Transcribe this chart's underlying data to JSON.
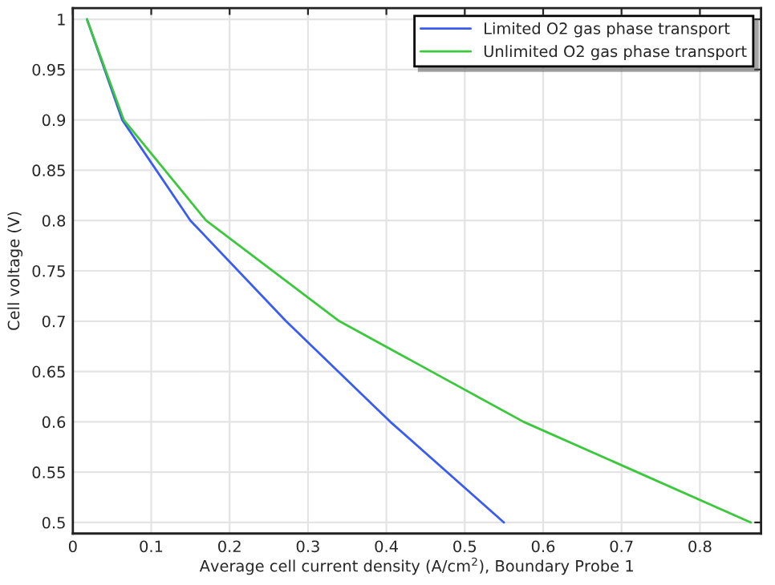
{
  "chart_data": {
    "type": "line",
    "xlabel": "Average cell current density (A/cm$^{2}$), Boundary Probe 1",
    "ylabel": "Cell voltage (V)",
    "xlim": [
      0,
      0.878
    ],
    "ylim": [
      0.489,
      1.011
    ],
    "xticks": [
      0,
      0.1,
      0.2,
      0.3,
      0.4,
      0.5,
      0.6,
      0.7,
      0.8
    ],
    "yticks": [
      0.5,
      0.55,
      0.6,
      0.65,
      0.7,
      0.75,
      0.8,
      0.85,
      0.9,
      0.95,
      1
    ],
    "grid": true,
    "legend": "top right",
    "marker": "none",
    "line_style": "solid",
    "series": [
      {
        "name": "Limited O2 gas phase transport",
        "color": "#3a5cf0",
        "x": [
          0.018,
          0.063,
          0.15,
          0.272,
          0.405,
          0.55
        ],
        "values": [
          1,
          0.9,
          0.8,
          0.7,
          0.6,
          0.5
        ]
      },
      {
        "name": "Unlimited O2 gas phase transport",
        "color": "#3cc83c",
        "x": [
          0.018,
          0.065,
          0.17,
          0.34,
          0.575,
          0.865
        ],
        "values": [
          1,
          0.9,
          0.8,
          0.7,
          0.6,
          0.5
        ]
      }
    ]
  }
}
